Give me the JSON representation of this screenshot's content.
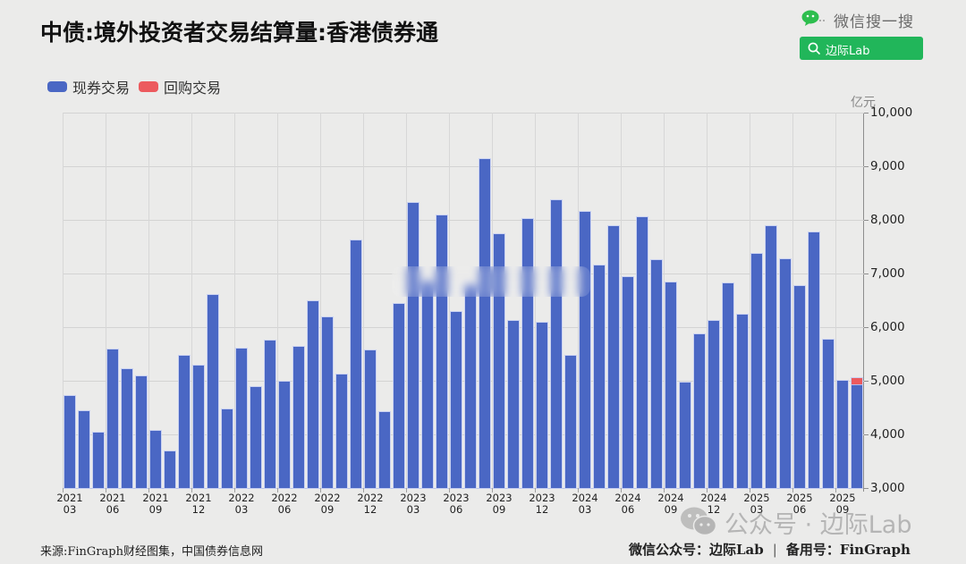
{
  "header": {
    "title": "中债:境外投资者交易结算量:香港债券通"
  },
  "wechat_search": {
    "label": "微信搜一搜",
    "button_text": "边际Lab",
    "button_color": "#21B65A"
  },
  "legend": [
    {
      "label": "现券交易",
      "color": "#4A67C4"
    },
    {
      "label": "回购交易",
      "color": "#EC5A5E"
    }
  ],
  "y_axis": {
    "unit": "亿元",
    "ticks": [
      {
        "value": 10000,
        "label": "10,000"
      },
      {
        "value": 9000,
        "label": "9,000"
      },
      {
        "value": 8000,
        "label": "8,000"
      },
      {
        "value": 7000,
        "label": "7,000"
      },
      {
        "value": 6000,
        "label": "6,000"
      },
      {
        "value": 5000,
        "label": "5,000"
      },
      {
        "value": 4000,
        "label": "4,000"
      },
      {
        "value": 3000,
        "label": "3,000"
      }
    ]
  },
  "x_axis": {
    "label_interval": 3,
    "tick_labels": [
      {
        "year": "2021",
        "month": "03"
      },
      {
        "year": "2021",
        "month": "06"
      },
      {
        "year": "2021",
        "month": "09"
      },
      {
        "year": "2021",
        "month": "12"
      },
      {
        "year": "2022",
        "month": "03"
      },
      {
        "year": "2022",
        "month": "06"
      },
      {
        "year": "2022",
        "month": "09"
      },
      {
        "year": "2022",
        "month": "12"
      },
      {
        "year": "2023",
        "month": "03"
      },
      {
        "year": "2023",
        "month": "06"
      },
      {
        "year": "2023",
        "month": "09"
      },
      {
        "year": "2023",
        "month": "12"
      },
      {
        "year": "2024",
        "month": "03"
      },
      {
        "year": "2024",
        "month": "06"
      },
      {
        "year": "2024",
        "month": "09"
      },
      {
        "year": "2024",
        "month": "12"
      },
      {
        "year": "2025",
        "month": "03"
      },
      {
        "year": "2025",
        "month": "06"
      },
      {
        "year": "2025",
        "month": "09"
      }
    ]
  },
  "footer": {
    "source": "来源:FinGraph财经图集，中国债券信息网",
    "account_primary": "微信公众号：边际Lab",
    "separator": "|",
    "account_backup": "备用号：FinGraph"
  },
  "watermark": {
    "text": "公众号 · 边际Lab"
  },
  "chart_data": {
    "type": "bar",
    "stacked": true,
    "title": "中债:境外投资者交易结算量:香港债券通",
    "xlabel": "",
    "ylabel": "亿元",
    "ylim": [
      3000,
      10000
    ],
    "yticks": [
      3000,
      4000,
      5000,
      6000,
      7000,
      8000,
      9000,
      10000
    ],
    "y_axis_position": "right",
    "grid": true,
    "legend_position": "top-left",
    "categories": [
      "2021-03",
      "2021-04",
      "2021-05",
      "2021-06",
      "2021-07",
      "2021-08",
      "2021-09",
      "2021-10",
      "2021-11",
      "2021-12",
      "2022-01",
      "2022-02",
      "2022-03",
      "2022-04",
      "2022-05",
      "2022-06",
      "2022-07",
      "2022-08",
      "2022-09",
      "2022-10",
      "2022-11",
      "2022-12",
      "2023-01",
      "2023-02",
      "2023-03",
      "2023-04",
      "2023-05",
      "2023-06",
      "2023-07",
      "2023-08",
      "2023-09",
      "2023-10",
      "2023-11",
      "2023-12",
      "2024-01",
      "2024-02",
      "2024-03",
      "2024-04",
      "2024-05",
      "2024-06",
      "2024-07",
      "2024-08",
      "2024-09",
      "2024-10",
      "2024-11",
      "2024-12",
      "2025-01",
      "2025-02",
      "2025-03",
      "2025-04",
      "2025-05",
      "2025-06",
      "2025-07",
      "2025-08",
      "2025-09",
      "2025-10"
    ],
    "series": [
      {
        "name": "现券交易",
        "color": "#4A67C4",
        "values": [
          4720,
          4440,
          4030,
          5590,
          5210,
          5080,
          4060,
          3680,
          5460,
          5280,
          6600,
          4460,
          5600,
          4890,
          5750,
          4980,
          5640,
          6480,
          6180,
          5110,
          7610,
          5560,
          4420,
          6430,
          8320,
          6850,
          8080,
          6290,
          6780,
          9140,
          7730,
          6110,
          8020,
          6090,
          8360,
          5460,
          8150,
          7150,
          7880,
          6930,
          8050,
          7250,
          6830,
          4960,
          5860,
          6120,
          6810,
          6230,
          7360,
          7880,
          7260,
          6760,
          7770,
          5760,
          5000,
          4930
        ]
      },
      {
        "name": "回购交易",
        "color": "#EC5A5E",
        "values": [
          0,
          0,
          0,
          0,
          0,
          0,
          0,
          0,
          0,
          0,
          0,
          0,
          0,
          0,
          0,
          0,
          0,
          0,
          0,
          0,
          0,
          0,
          0,
          0,
          0,
          0,
          0,
          0,
          0,
          0,
          0,
          0,
          0,
          0,
          0,
          0,
          0,
          0,
          0,
          0,
          0,
          0,
          0,
          0,
          0,
          0,
          0,
          0,
          0,
          0,
          0,
          0,
          0,
          0,
          0,
          120
        ]
      }
    ]
  }
}
